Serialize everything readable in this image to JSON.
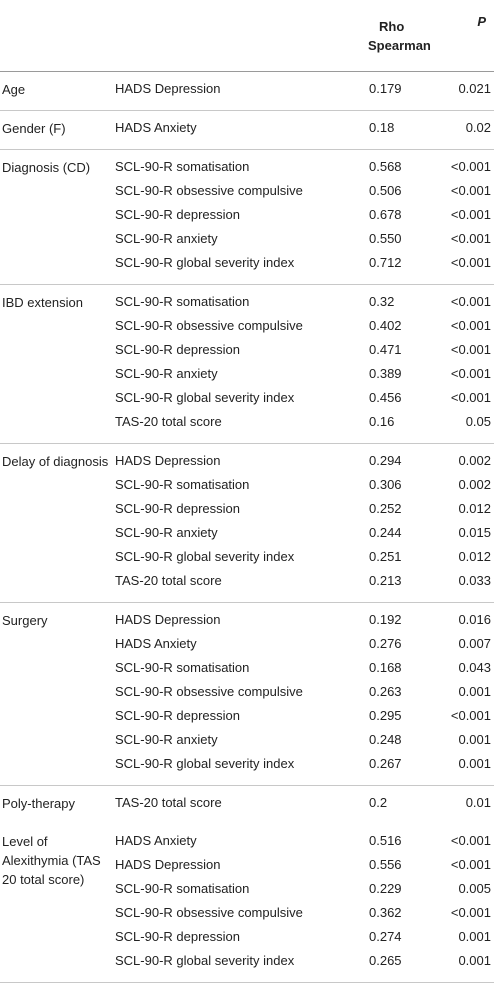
{
  "header": {
    "col1": "",
    "col2": "",
    "rho_line1": "Rho",
    "rho_line2": "Spearman",
    "p": "P"
  },
  "groups": [
    {
      "label": "Age",
      "rows": [
        {
          "measure": "HADS Depression",
          "rho": "0.179",
          "p": "0.021"
        }
      ]
    },
    {
      "label": "Gender (F)",
      "rows": [
        {
          "measure": "HADS Anxiety",
          "rho": "0.18",
          "p": "0.02"
        }
      ]
    },
    {
      "label": "Diagnosis (CD)",
      "rows": [
        {
          "measure": "SCL-90-R somatisation",
          "rho": "0.568",
          "p": "<0.001"
        },
        {
          "measure": "SCL-90-R obsessive compulsive",
          "rho": "0.506",
          "p": "<0.001"
        },
        {
          "measure": "SCL-90-R depression",
          "rho": "0.678",
          "p": "<0.001"
        },
        {
          "measure": "SCL-90-R anxiety",
          "rho": "0.550",
          "p": "<0.001"
        },
        {
          "measure": "SCL-90-R global severity index",
          "rho": "0.712",
          "p": "<0.001"
        }
      ]
    },
    {
      "label": "IBD extension",
      "rows": [
        {
          "measure": "SCL-90-R somatisation",
          "rho": "0.32",
          "p": "<0.001"
        },
        {
          "measure": "SCL-90-R obsessive compulsive",
          "rho": "0.402",
          "p": "<0.001"
        },
        {
          "measure": "SCL-90-R depression",
          "rho": "0.471",
          "p": "<0.001"
        },
        {
          "measure": "SCL-90-R anxiety",
          "rho": "0.389",
          "p": "<0.001"
        },
        {
          "measure": "SCL-90-R global severity index",
          "rho": "0.456",
          "p": "<0.001"
        },
        {
          "measure": "TAS-20 total score",
          "rho": "0.16",
          "p": "0.05"
        }
      ]
    },
    {
      "label": "Delay of diagnosis",
      "rows": [
        {
          "measure": "HADS Depression",
          "rho": "0.294",
          "p": "0.002"
        },
        {
          "measure": "SCL-90-R somatisation",
          "rho": "0.306",
          "p": "0.002"
        },
        {
          "measure": "SCL-90-R depression",
          "rho": "0.252",
          "p": "0.012"
        },
        {
          "measure": "SCL-90-R anxiety",
          "rho": "0.244",
          "p": "0.015"
        },
        {
          "measure": "SCL-90-R global severity index",
          "rho": "0.251",
          "p": "0.012"
        },
        {
          "measure": "TAS-20 total score",
          "rho": "0.213",
          "p": "0.033"
        }
      ]
    },
    {
      "label": "Surgery",
      "rows": [
        {
          "measure": "HADS Depression",
          "rho": "0.192",
          "p": "0.016"
        },
        {
          "measure": "HADS Anxiety",
          "rho": "0.276",
          "p": "0.007"
        },
        {
          "measure": "SCL-90-R somatisation",
          "rho": "0.168",
          "p": "0.043"
        },
        {
          "measure": "SCL-90-R obsessive compulsive",
          "rho": "0.263",
          "p": "0.001"
        },
        {
          "measure": "SCL-90-R depression",
          "rho": "0.295",
          "p": "<0.001"
        },
        {
          "measure": "SCL-90-R anxiety",
          "rho": "0.248",
          "p": "0.001"
        },
        {
          "measure": "SCL-90-R global severity index",
          "rho": "0.267",
          "p": "0.001"
        }
      ]
    },
    {
      "label": "Poly-therapy",
      "nosep": true,
      "rows": [
        {
          "measure": "TAS-20 total score",
          "rho": "0.2",
          "p": "0.01"
        }
      ]
    },
    {
      "label": "Level of Alexithymia (TAS 20 total score)",
      "rows": [
        {
          "measure": "HADS Anxiety",
          "rho": "0.516",
          "p": "<0.001"
        },
        {
          "measure": "HADS Depression",
          "rho": "0.556",
          "p": "<0.001"
        },
        {
          "measure": "SCL-90-R somatisation",
          "rho": "0.229",
          "p": "0.005"
        },
        {
          "measure": "SCL-90-R obsessive compulsive",
          "rho": "0.362",
          "p": "<0.001"
        },
        {
          "measure": "SCL-90-R depression",
          "rho": "0.274",
          "p": "0.001"
        },
        {
          "measure": "SCL-90-R global severity index",
          "rho": "0.265",
          "p": "0.001"
        }
      ]
    }
  ]
}
